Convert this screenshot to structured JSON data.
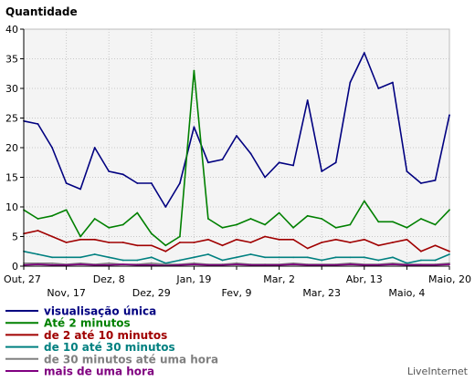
{
  "chart_data": {
    "type": "line",
    "ylabel": "Quantidade",
    "ylim": [
      0,
      40
    ],
    "yticks": [
      0,
      5,
      10,
      15,
      20,
      25,
      30,
      35,
      40
    ],
    "grid": true,
    "legend_position": "bottom-left",
    "x_tick_labels": [
      {
        "label": "Out, 27",
        "index": 0,
        "row": 1
      },
      {
        "label": "Nov, 17",
        "index": 3,
        "row": 2
      },
      {
        "label": "Dez, 8",
        "index": 6,
        "row": 1
      },
      {
        "label": "Dez, 29",
        "index": 9,
        "row": 2
      },
      {
        "label": "Jan, 19",
        "index": 12,
        "row": 1
      },
      {
        "label": "Fev, 9",
        "index": 15,
        "row": 2
      },
      {
        "label": "Mar, 2",
        "index": 18,
        "row": 1
      },
      {
        "label": "Mar, 23",
        "index": 21,
        "row": 2
      },
      {
        "label": "Abr, 13",
        "index": 24,
        "row": 1
      },
      {
        "label": "Maio, 4",
        "index": 27,
        "row": 2
      },
      {
        "label": "Maio, 20",
        "index": 30,
        "row": 1
      }
    ],
    "series": [
      {
        "name": "visualisação única",
        "color": "#000080",
        "values": [
          24.5,
          24,
          20,
          14,
          13,
          20,
          16,
          15.5,
          14,
          14,
          10,
          14,
          23.5,
          17.5,
          18,
          22,
          19,
          15,
          17.5,
          17,
          28,
          16,
          17.5,
          31,
          36,
          30,
          31,
          16,
          14,
          14.5,
          25.5
        ]
      },
      {
        "name": "Até 2 minutos",
        "color": "#008000",
        "values": [
          9.5,
          8,
          8.5,
          9.5,
          5,
          8,
          6.5,
          7,
          9,
          5.5,
          3.5,
          5,
          33,
          8,
          6.5,
          7,
          8,
          7,
          9,
          6.5,
          8.5,
          8,
          6.5,
          7,
          11,
          7.5,
          7.5,
          6.5,
          8,
          7,
          9.5
        ]
      },
      {
        "name": "de 2 até 10 minutos",
        "color": "#a00000",
        "values": [
          5.5,
          6,
          5,
          4,
          4.5,
          4.5,
          4,
          4,
          3.5,
          3.5,
          2.5,
          4,
          4,
          4.5,
          3.5,
          4.5,
          4,
          5,
          4.5,
          4.5,
          3,
          4,
          4.5,
          4,
          4.5,
          3.5,
          4,
          4.5,
          2.5,
          3.5,
          2.5
        ]
      },
      {
        "name": "de 10 até 30 minutos",
        "color": "#008080",
        "values": [
          2.5,
          2,
          1.5,
          1.5,
          1.5,
          2,
          1.5,
          1,
          1,
          1.5,
          0.5,
          1,
          1.5,
          2,
          1,
          1.5,
          2,
          1.5,
          1.5,
          1.5,
          1.5,
          1,
          1.5,
          1.5,
          1.5,
          1,
          1.5,
          0.5,
          1,
          1,
          2
        ]
      },
      {
        "name": "de 30 minutos até uma hora",
        "color": "#808080",
        "values": [
          0.5,
          0.5,
          0.5,
          0.3,
          0.5,
          0.3,
          0.5,
          0.3,
          0.3,
          0.5,
          0.3,
          0.3,
          0.5,
          0.3,
          0.3,
          0.5,
          0.3,
          0.3,
          0.3,
          0.5,
          0.3,
          0.3,
          0.3,
          0.5,
          0.3,
          0.3,
          0.5,
          0.3,
          0.3,
          0.3,
          0.5
        ]
      },
      {
        "name": "mais de uma hora",
        "color": "#800080",
        "values": [
          0.2,
          0.3,
          0.2,
          0.2,
          0.3,
          0.2,
          0.2,
          0.3,
          0.2,
          0.2,
          0.1,
          0.2,
          0.3,
          0.2,
          0.2,
          0.3,
          0.2,
          0.2,
          0.2,
          0.3,
          0.2,
          0.2,
          0.2,
          0.3,
          0.2,
          0.2,
          0.3,
          0.2,
          0.2,
          0.2,
          0.3
        ]
      }
    ]
  },
  "branding": {
    "credit": "LiveInternet"
  }
}
